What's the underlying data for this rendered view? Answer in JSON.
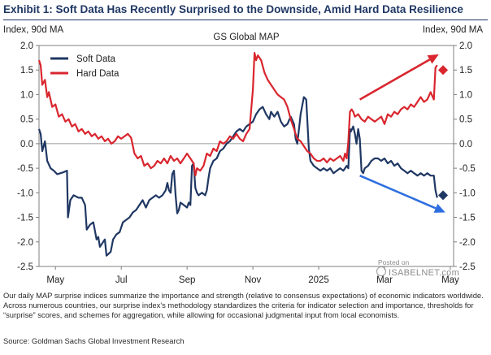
{
  "header": {
    "title": "Exhibit 1: Soft Data Has Recently Surprised to the Downside, Amid Hard Data Resilience"
  },
  "footer": {
    "note": "Our daily MAP surprise indices summarize the importance and strength (relative to consensus expectations) of economic indicators worldwide. Across numerous countries, our surprise index's methodology standardizes the criteria for indicator selection and importance, thresholds for “surprise” scores, and schemes for aggregation, while allowing for occasional judgmental input from local economists.",
    "source": "Source: Goldman Sachs Global Investment Research"
  },
  "watermark": {
    "posted": "Posted on",
    "brand": "ISABELNET.com"
  },
  "chart_data": {
    "type": "line",
    "title": "GS Global MAP",
    "ylabel_left": "Index, 90d MA",
    "ylabel_right": "Index, 90d MA",
    "ylim": [
      -2.5,
      2.0
    ],
    "yticks": [
      -2.5,
      -2.0,
      -1.5,
      -1.0,
      -0.5,
      0.0,
      0.5,
      1.0,
      1.5,
      2.0
    ],
    "ytick_labels": [
      "-2.5",
      "-2.0",
      "-1.5",
      "-1.0",
      "-0.5",
      "0.0",
      "0.5",
      "1.0",
      "1.5",
      "2.0"
    ],
    "xlim": [
      0,
      12.6
    ],
    "xticks": [
      {
        "x": 0.5,
        "label": "May"
      },
      {
        "x": 2.5,
        "label": "Jul"
      },
      {
        "x": 4.5,
        "label": "Sep"
      },
      {
        "x": 6.5,
        "label": "Nov"
      },
      {
        "x": 8.5,
        "label": "2025"
      },
      {
        "x": 10.5,
        "label": "Mar"
      },
      {
        "x": 12.5,
        "label": "May"
      }
    ],
    "legend_position": "top-left",
    "grid": false,
    "zero_line": true,
    "colors": {
      "soft": "#1f3763",
      "hard": "#d9262e",
      "soft_arrow": "#2f6fe0",
      "hard_arrow": "#d9262e"
    },
    "series": [
      {
        "name": "Soft Data",
        "key": "soft",
        "points": [
          [
            0.0,
            0.3
          ],
          [
            0.05,
            0.2
          ],
          [
            0.1,
            -0.15
          ],
          [
            0.18,
            0.05
          ],
          [
            0.25,
            -0.35
          ],
          [
            0.35,
            -0.5
          ],
          [
            0.45,
            -0.55
          ],
          [
            0.55,
            -0.62
          ],
          [
            0.65,
            -0.6
          ],
          [
            0.75,
            -0.58
          ],
          [
            0.85,
            -0.55
          ],
          [
            0.88,
            -1.5
          ],
          [
            0.95,
            -1.15
          ],
          [
            1.05,
            -1.05
          ],
          [
            1.2,
            -1.1
          ],
          [
            1.3,
            -1.1
          ],
          [
            1.4,
            -1.25
          ],
          [
            1.45,
            -1.75
          ],
          [
            1.55,
            -1.65
          ],
          [
            1.65,
            -1.6
          ],
          [
            1.75,
            -1.95
          ],
          [
            1.8,
            -1.9
          ],
          [
            1.85,
            -2.1
          ],
          [
            1.95,
            -2.0
          ],
          [
            2.0,
            -1.95
          ],
          [
            2.05,
            -2.28
          ],
          [
            2.1,
            -2.25
          ],
          [
            2.18,
            -2.2
          ],
          [
            2.25,
            -1.95
          ],
          [
            2.35,
            -1.85
          ],
          [
            2.45,
            -1.8
          ],
          [
            2.55,
            -1.6
          ],
          [
            2.65,
            -1.55
          ],
          [
            2.75,
            -1.5
          ],
          [
            2.85,
            -1.4
          ],
          [
            2.95,
            -1.35
          ],
          [
            3.05,
            -1.25
          ],
          [
            3.15,
            -1.15
          ],
          [
            3.25,
            -1.3
          ],
          [
            3.35,
            -1.15
          ],
          [
            3.45,
            -1.1
          ],
          [
            3.55,
            -1.05
          ],
          [
            3.65,
            -1.1
          ],
          [
            3.75,
            -1.05
          ],
          [
            3.85,
            -0.95
          ],
          [
            3.9,
            -0.8
          ],
          [
            3.95,
            -0.95
          ],
          [
            4.0,
            -1.0
          ],
          [
            4.05,
            -0.62
          ],
          [
            4.1,
            -0.55
          ],
          [
            4.15,
            -1.05
          ],
          [
            4.2,
            -1.42
          ],
          [
            4.25,
            -1.35
          ],
          [
            4.3,
            -1.2
          ],
          [
            4.4,
            -1.25
          ],
          [
            4.5,
            -1.3
          ],
          [
            4.55,
            -1.2
          ],
          [
            4.6,
            -1.25
          ],
          [
            4.65,
            -0.45
          ],
          [
            4.7,
            -0.4
          ],
          [
            4.75,
            -0.9
          ],
          [
            4.8,
            -1.0
          ],
          [
            4.85,
            -1.05
          ],
          [
            4.95,
            -1.0
          ],
          [
            5.05,
            -1.05
          ],
          [
            5.1,
            -0.95
          ],
          [
            5.15,
            -0.7
          ],
          [
            5.2,
            -0.5
          ],
          [
            5.3,
            -0.35
          ],
          [
            5.4,
            -0.3
          ],
          [
            5.5,
            -0.15
          ],
          [
            5.6,
            -0.1
          ],
          [
            5.7,
            0.0
          ],
          [
            5.8,
            0.05
          ],
          [
            5.9,
            0.15
          ],
          [
            6.0,
            0.25
          ],
          [
            6.1,
            0.3
          ],
          [
            6.2,
            0.25
          ],
          [
            6.3,
            0.35
          ],
          [
            6.4,
            0.4
          ],
          [
            6.5,
            0.45
          ],
          [
            6.6,
            0.6
          ],
          [
            6.7,
            0.7
          ],
          [
            6.8,
            0.75
          ],
          [
            6.9,
            0.6
          ],
          [
            7.0,
            0.5
          ],
          [
            7.05,
            0.65
          ],
          [
            7.15,
            0.55
          ],
          [
            7.25,
            0.65
          ],
          [
            7.35,
            0.45
          ],
          [
            7.45,
            0.35
          ],
          [
            7.55,
            0.4
          ],
          [
            7.65,
            0.55
          ],
          [
            7.75,
            0.4
          ],
          [
            7.8,
            0.1
          ],
          [
            7.85,
            0.0
          ],
          [
            7.9,
            0.3
          ],
          [
            7.95,
            0.6
          ],
          [
            8.05,
            0.95
          ],
          [
            8.12,
            0.9
          ],
          [
            8.2,
            -0.1
          ],
          [
            8.25,
            -0.35
          ],
          [
            8.35,
            -0.45
          ],
          [
            8.45,
            -0.5
          ],
          [
            8.55,
            -0.55
          ],
          [
            8.65,
            -0.5
          ],
          [
            8.75,
            -0.55
          ],
          [
            8.85,
            -0.5
          ],
          [
            8.95,
            -0.6
          ],
          [
            9.05,
            -0.55
          ],
          [
            9.15,
            -0.5
          ],
          [
            9.25,
            -0.55
          ],
          [
            9.35,
            -0.45
          ],
          [
            9.4,
            -0.5
          ],
          [
            9.45,
            0.3
          ],
          [
            9.48,
            0.25
          ],
          [
            9.55,
            0.35
          ],
          [
            9.6,
            0.2
          ],
          [
            9.65,
            0.0
          ],
          [
            9.7,
            0.3
          ],
          [
            9.75,
            0.1
          ],
          [
            9.8,
            -0.55
          ],
          [
            9.85,
            -0.6
          ],
          [
            9.9,
            -0.5
          ],
          [
            10.0,
            -0.45
          ],
          [
            10.1,
            -0.35
          ],
          [
            10.2,
            -0.3
          ],
          [
            10.3,
            -0.3
          ],
          [
            10.4,
            -0.35
          ],
          [
            10.5,
            -0.3
          ],
          [
            10.6,
            -0.4
          ],
          [
            10.7,
            -0.35
          ],
          [
            10.8,
            -0.45
          ],
          [
            10.9,
            -0.4
          ],
          [
            11.0,
            -0.5
          ],
          [
            11.1,
            -0.55
          ],
          [
            11.2,
            -0.6
          ],
          [
            11.3,
            -0.55
          ],
          [
            11.4,
            -0.6
          ],
          [
            11.5,
            -0.65
          ],
          [
            11.6,
            -0.6
          ],
          [
            11.7,
            -0.65
          ],
          [
            11.8,
            -0.6
          ],
          [
            11.9,
            -0.65
          ],
          [
            12.0,
            -0.65
          ],
          [
            12.05,
            -0.95
          ],
          [
            12.1,
            -1.1
          ]
        ],
        "end_marker": [
          12.28,
          -1.05
        ]
      },
      {
        "name": "Hard Data",
        "key": "hard",
        "points": [
          [
            0.0,
            1.7
          ],
          [
            0.05,
            1.6
          ],
          [
            0.1,
            1.2
          ],
          [
            0.18,
            1.3
          ],
          [
            0.25,
            0.95
          ],
          [
            0.3,
            1.05
          ],
          [
            0.4,
            0.75
          ],
          [
            0.5,
            0.8
          ],
          [
            0.6,
            0.55
          ],
          [
            0.7,
            0.6
          ],
          [
            0.8,
            0.45
          ],
          [
            0.9,
            0.5
          ],
          [
            1.0,
            0.35
          ],
          [
            1.1,
            0.4
          ],
          [
            1.2,
            0.25
          ],
          [
            1.3,
            0.3
          ],
          [
            1.4,
            0.2
          ],
          [
            1.5,
            0.25
          ],
          [
            1.6,
            0.15
          ],
          [
            1.7,
            0.2
          ],
          [
            1.8,
            0.1
          ],
          [
            1.9,
            0.15
          ],
          [
            2.0,
            0.05
          ],
          [
            2.1,
            0.1
          ],
          [
            2.2,
            0.0
          ],
          [
            2.3,
            0.05
          ],
          [
            2.4,
            0.15
          ],
          [
            2.5,
            0.1
          ],
          [
            2.6,
            0.15
          ],
          [
            2.7,
            0.2
          ],
          [
            2.8,
            0.12
          ],
          [
            2.9,
            -0.2
          ],
          [
            3.0,
            -0.3
          ],
          [
            3.1,
            -0.25
          ],
          [
            3.2,
            -0.45
          ],
          [
            3.3,
            -0.4
          ],
          [
            3.4,
            -0.5
          ],
          [
            3.5,
            -0.45
          ],
          [
            3.6,
            -0.35
          ],
          [
            3.7,
            -0.4
          ],
          [
            3.8,
            -0.3
          ],
          [
            3.9,
            -0.4
          ],
          [
            4.0,
            -0.25
          ],
          [
            4.1,
            -0.35
          ],
          [
            4.2,
            -0.3
          ],
          [
            4.3,
            -0.4
          ],
          [
            4.4,
            -0.3
          ],
          [
            4.5,
            -0.2
          ],
          [
            4.6,
            -0.3
          ],
          [
            4.7,
            -0.4
          ],
          [
            4.75,
            -0.65
          ],
          [
            4.8,
            -0.5
          ],
          [
            4.9,
            -0.55
          ],
          [
            5.0,
            -0.45
          ],
          [
            5.1,
            -0.2
          ],
          [
            5.2,
            -0.25
          ],
          [
            5.3,
            -0.1
          ],
          [
            5.4,
            -0.15
          ],
          [
            5.5,
            0.05
          ],
          [
            5.6,
            0.0
          ],
          [
            5.7,
            0.05
          ],
          [
            5.8,
            0.15
          ],
          [
            5.9,
            0.1
          ],
          [
            6.0,
            0.2
          ],
          [
            6.1,
            0.1
          ],
          [
            6.2,
            0.05
          ],
          [
            6.3,
            0.2
          ],
          [
            6.4,
            0.3
          ],
          [
            6.5,
            1.1
          ],
          [
            6.55,
            1.85
          ],
          [
            6.6,
            1.7
          ],
          [
            6.65,
            1.8
          ],
          [
            6.75,
            1.7
          ],
          [
            6.85,
            1.45
          ],
          [
            6.95,
            1.3
          ],
          [
            7.05,
            1.2
          ],
          [
            7.15,
            1.1
          ],
          [
            7.25,
            1.0
          ],
          [
            7.35,
            0.95
          ],
          [
            7.45,
            0.9
          ],
          [
            7.55,
            0.75
          ],
          [
            7.65,
            0.5
          ],
          [
            7.75,
            0.3
          ],
          [
            7.85,
            0.1
          ],
          [
            7.95,
            0.05
          ],
          [
            8.05,
            -0.05
          ],
          [
            8.15,
            -0.15
          ],
          [
            8.25,
            -0.2
          ],
          [
            8.35,
            -0.3
          ],
          [
            8.45,
            -0.35
          ],
          [
            8.55,
            -0.35
          ],
          [
            8.65,
            -0.3
          ],
          [
            8.75,
            -0.38
          ],
          [
            8.85,
            -0.3
          ],
          [
            8.95,
            -0.35
          ],
          [
            9.05,
            -0.3
          ],
          [
            9.15,
            -0.25
          ],
          [
            9.25,
            -0.35
          ],
          [
            9.3,
            -0.2
          ],
          [
            9.35,
            -0.3
          ],
          [
            9.4,
            0.05
          ],
          [
            9.45,
            0.65
          ],
          [
            9.5,
            0.7
          ],
          [
            9.55,
            0.65
          ],
          [
            9.6,
            0.55
          ],
          [
            9.7,
            0.6
          ],
          [
            9.8,
            0.5
          ],
          [
            9.9,
            0.45
          ],
          [
            10.0,
            0.55
          ],
          [
            10.1,
            0.5
          ],
          [
            10.2,
            0.45
          ],
          [
            10.3,
            0.5
          ],
          [
            10.4,
            0.55
          ],
          [
            10.5,
            0.4
          ],
          [
            10.6,
            0.6
          ],
          [
            10.7,
            0.55
          ],
          [
            10.8,
            0.65
          ],
          [
            10.9,
            0.6
          ],
          [
            11.0,
            0.7
          ],
          [
            11.1,
            0.75
          ],
          [
            11.2,
            0.7
          ],
          [
            11.3,
            0.8
          ],
          [
            11.4,
            0.75
          ],
          [
            11.5,
            0.85
          ],
          [
            11.6,
            0.95
          ],
          [
            11.7,
            0.85
          ],
          [
            11.8,
            0.9
          ],
          [
            11.9,
            1.05
          ],
          [
            12.0,
            0.9
          ],
          [
            12.05,
            1.55
          ],
          [
            12.1,
            1.6
          ]
        ],
        "end_marker": [
          12.28,
          1.5
        ]
      }
    ],
    "annotations": [
      {
        "type": "arrow",
        "key": "hard_arrow",
        "from": [
          9.75,
          0.9
        ],
        "to": [
          12.15,
          1.82
        ]
      },
      {
        "type": "arrow",
        "key": "soft_arrow",
        "from": [
          9.75,
          -0.65
        ],
        "to": [
          12.35,
          -1.4
        ]
      }
    ]
  }
}
